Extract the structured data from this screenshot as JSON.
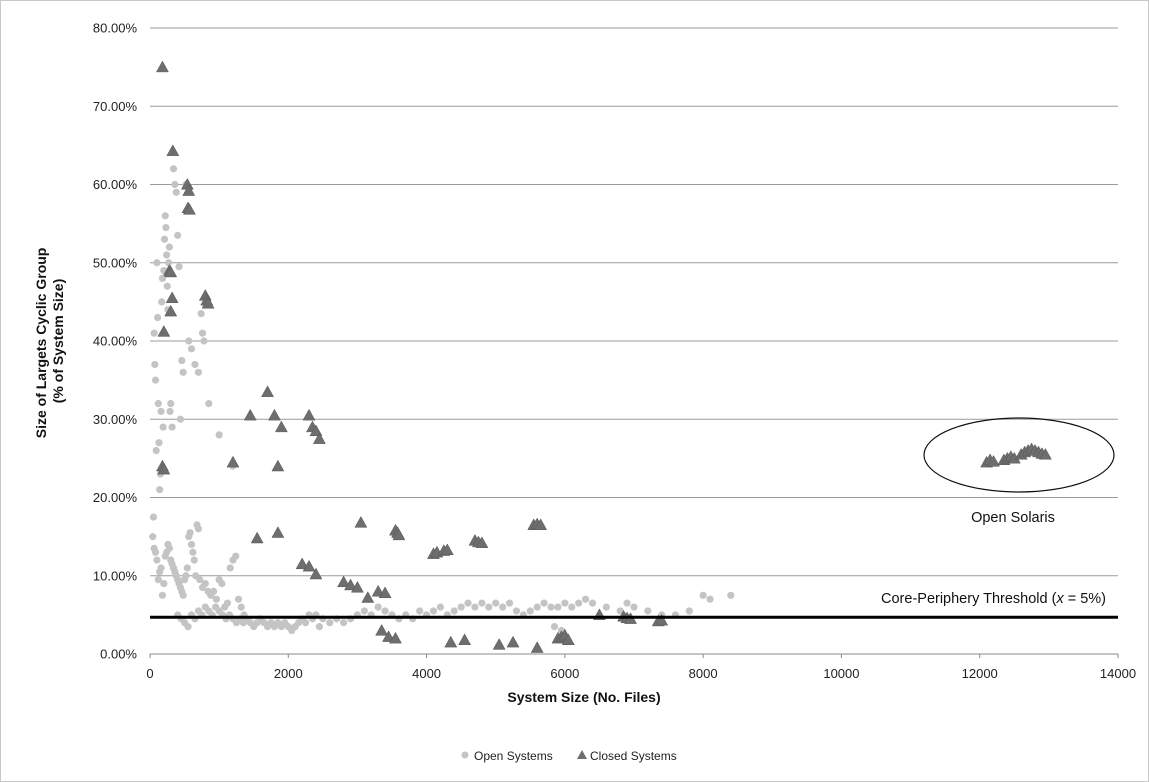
{
  "chart_data": {
    "type": "scatter",
    "xlabel": "System Size (No. Files)",
    "ylabel_lines": [
      "Size of Largets Cyclic Group",
      "(% of System Size)"
    ],
    "xlim": [
      0,
      14000
    ],
    "ylim": [
      0,
      0.8
    ],
    "x_ticks": [
      "0",
      "2000",
      "4000",
      "6000",
      "8000",
      "10000",
      "12000",
      "14000"
    ],
    "y_ticks": [
      "0.00%",
      "10.00%",
      "20.00%",
      "30.00%",
      "40.00%",
      "50.00%",
      "60.00%",
      "70.00%",
      "80.00%"
    ],
    "grid": "horizontal",
    "legend_position": "bottom",
    "threshold": {
      "y": 0.047,
      "label_prefix": "Core-Periphery Threshold (",
      "label_var": "x",
      "label_suffix": " = 5%)"
    },
    "highlight": {
      "label": "Open Solaris"
    },
    "colors": {
      "open": "#c4c4c4",
      "closed": "#6e6e6e",
      "grid": "#9c9c9c",
      "threshold": "#000000"
    },
    "series": [
      {
        "name": "Open Systems",
        "marker": "circle",
        "points": [
          [
            50,
            0.175
          ],
          [
            60,
            0.41
          ],
          [
            70,
            0.37
          ],
          [
            80,
            0.35
          ],
          [
            90,
            0.26
          ],
          [
            100,
            0.5
          ],
          [
            110,
            0.43
          ],
          [
            120,
            0.32
          ],
          [
            130,
            0.27
          ],
          [
            140,
            0.21
          ],
          [
            150,
            0.23
          ],
          [
            160,
            0.31
          ],
          [
            170,
            0.45
          ],
          [
            180,
            0.48
          ],
          [
            190,
            0.29
          ],
          [
            200,
            0.49
          ],
          [
            210,
            0.53
          ],
          [
            220,
            0.56
          ],
          [
            230,
            0.545
          ],
          [
            240,
            0.51
          ],
          [
            250,
            0.47
          ],
          [
            260,
            0.44
          ],
          [
            270,
            0.5
          ],
          [
            280,
            0.52
          ],
          [
            290,
            0.31
          ],
          [
            300,
            0.32
          ],
          [
            320,
            0.29
          ],
          [
            340,
            0.62
          ],
          [
            360,
            0.6
          ],
          [
            380,
            0.59
          ],
          [
            400,
            0.535
          ],
          [
            420,
            0.495
          ],
          [
            440,
            0.3
          ],
          [
            460,
            0.375
          ],
          [
            480,
            0.36
          ],
          [
            520,
            0.6
          ],
          [
            560,
            0.4
          ],
          [
            600,
            0.39
          ],
          [
            650,
            0.37
          ],
          [
            700,
            0.36
          ],
          [
            740,
            0.435
          ],
          [
            760,
            0.41
          ],
          [
            780,
            0.4
          ],
          [
            850,
            0.32
          ],
          [
            1000,
            0.28
          ],
          [
            1200,
            0.24
          ],
          [
            40,
            0.15
          ],
          [
            60,
            0.135
          ],
          [
            80,
            0.13
          ],
          [
            100,
            0.12
          ],
          [
            120,
            0.095
          ],
          [
            140,
            0.105
          ],
          [
            160,
            0.11
          ],
          [
            180,
            0.075
          ],
          [
            200,
            0.09
          ],
          [
            220,
            0.125
          ],
          [
            240,
            0.13
          ],
          [
            260,
            0.14
          ],
          [
            280,
            0.135
          ],
          [
            300,
            0.12
          ],
          [
            320,
            0.115
          ],
          [
            340,
            0.11
          ],
          [
            360,
            0.105
          ],
          [
            380,
            0.1
          ],
          [
            400,
            0.095
          ],
          [
            420,
            0.09
          ],
          [
            440,
            0.085
          ],
          [
            460,
            0.08
          ],
          [
            480,
            0.075
          ],
          [
            500,
            0.095
          ],
          [
            520,
            0.1
          ],
          [
            540,
            0.11
          ],
          [
            560,
            0.15
          ],
          [
            580,
            0.155
          ],
          [
            600,
            0.14
          ],
          [
            620,
            0.13
          ],
          [
            640,
            0.12
          ],
          [
            660,
            0.1
          ],
          [
            680,
            0.165
          ],
          [
            700,
            0.16
          ],
          [
            720,
            0.095
          ],
          [
            760,
            0.085
          ],
          [
            800,
            0.09
          ],
          [
            840,
            0.08
          ],
          [
            880,
            0.075
          ],
          [
            920,
            0.08
          ],
          [
            960,
            0.07
          ],
          [
            1000,
            0.095
          ],
          [
            1040,
            0.09
          ],
          [
            1080,
            0.06
          ],
          [
            1120,
            0.065
          ],
          [
            1160,
            0.11
          ],
          [
            1200,
            0.12
          ],
          [
            1240,
            0.125
          ],
          [
            1280,
            0.07
          ],
          [
            1320,
            0.06
          ],
          [
            1360,
            0.05
          ],
          [
            400,
            0.05
          ],
          [
            450,
            0.045
          ],
          [
            500,
            0.04
          ],
          [
            550,
            0.035
          ],
          [
            600,
            0.05
          ],
          [
            650,
            0.045
          ],
          [
            700,
            0.055
          ],
          [
            750,
            0.05
          ],
          [
            800,
            0.06
          ],
          [
            850,
            0.055
          ],
          [
            900,
            0.05
          ],
          [
            950,
            0.06
          ],
          [
            1000,
            0.055
          ],
          [
            1050,
            0.05
          ],
          [
            1100,
            0.045
          ],
          [
            1150,
            0.05
          ],
          [
            1200,
            0.045
          ],
          [
            1250,
            0.04
          ],
          [
            1300,
            0.045
          ],
          [
            1350,
            0.04
          ],
          [
            1400,
            0.045
          ],
          [
            1450,
            0.04
          ],
          [
            1500,
            0.035
          ],
          [
            1550,
            0.04
          ],
          [
            1600,
            0.045
          ],
          [
            1650,
            0.04
          ],
          [
            1700,
            0.035
          ],
          [
            1750,
            0.04
          ],
          [
            1800,
            0.035
          ],
          [
            1850,
            0.04
          ],
          [
            1900,
            0.035
          ],
          [
            1950,
            0.04
          ],
          [
            2000,
            0.035
          ],
          [
            2050,
            0.03
          ],
          [
            2100,
            0.035
          ],
          [
            2150,
            0.04
          ],
          [
            2200,
            0.045
          ],
          [
            2250,
            0.04
          ],
          [
            2300,
            0.05
          ],
          [
            2350,
            0.045
          ],
          [
            2400,
            0.05
          ],
          [
            2450,
            0.035
          ],
          [
            2500,
            0.045
          ],
          [
            2600,
            0.04
          ],
          [
            2700,
            0.045
          ],
          [
            2800,
            0.04
          ],
          [
            2900,
            0.045
          ],
          [
            3000,
            0.05
          ],
          [
            3100,
            0.055
          ],
          [
            3200,
            0.05
          ],
          [
            3300,
            0.06
          ],
          [
            3400,
            0.055
          ],
          [
            3500,
            0.05
          ],
          [
            3600,
            0.045
          ],
          [
            3700,
            0.05
          ],
          [
            3800,
            0.045
          ],
          [
            3900,
            0.055
          ],
          [
            4000,
            0.05
          ],
          [
            4100,
            0.055
          ],
          [
            4200,
            0.06
          ],
          [
            4300,
            0.05
          ],
          [
            4400,
            0.055
          ],
          [
            4500,
            0.06
          ],
          [
            4600,
            0.065
          ],
          [
            4700,
            0.06
          ],
          [
            4800,
            0.065
          ],
          [
            4900,
            0.06
          ],
          [
            5000,
            0.065
          ],
          [
            5100,
            0.06
          ],
          [
            5200,
            0.065
          ],
          [
            5300,
            0.055
          ],
          [
            5400,
            0.05
          ],
          [
            5500,
            0.055
          ],
          [
            5600,
            0.06
          ],
          [
            5700,
            0.065
          ],
          [
            5800,
            0.06
          ],
          [
            5850,
            0.035
          ],
          [
            5900,
            0.06
          ],
          [
            5950,
            0.03
          ],
          [
            6000,
            0.065
          ],
          [
            6100,
            0.06
          ],
          [
            6200,
            0.065
          ],
          [
            6300,
            0.07
          ],
          [
            6400,
            0.065
          ],
          [
            6600,
            0.06
          ],
          [
            6800,
            0.055
          ],
          [
            6900,
            0.065
          ],
          [
            7000,
            0.06
          ],
          [
            7200,
            0.055
          ],
          [
            7400,
            0.05
          ],
          [
            7600,
            0.05
          ],
          [
            7800,
            0.055
          ],
          [
            8000,
            0.075
          ],
          [
            8100,
            0.07
          ],
          [
            8400,
            0.075
          ]
        ]
      },
      {
        "name": "Closed Systems",
        "marker": "triangle",
        "points": [
          [
            180,
            0.75
          ],
          [
            330,
            0.643
          ],
          [
            540,
            0.6
          ],
          [
            560,
            0.592
          ],
          [
            550,
            0.57
          ],
          [
            570,
            0.568
          ],
          [
            280,
            0.49
          ],
          [
            300,
            0.488
          ],
          [
            320,
            0.455
          ],
          [
            300,
            0.438
          ],
          [
            800,
            0.458
          ],
          [
            820,
            0.452
          ],
          [
            840,
            0.448
          ],
          [
            200,
            0.412
          ],
          [
            180,
            0.24
          ],
          [
            200,
            0.236
          ],
          [
            1200,
            0.245
          ],
          [
            1450,
            0.305
          ],
          [
            1700,
            0.335
          ],
          [
            1800,
            0.305
          ],
          [
            1850,
            0.24
          ],
          [
            1900,
            0.29
          ],
          [
            2300,
            0.305
          ],
          [
            2350,
            0.29
          ],
          [
            2400,
            0.285
          ],
          [
            2450,
            0.275
          ],
          [
            1550,
            0.148
          ],
          [
            1850,
            0.155
          ],
          [
            2200,
            0.115
          ],
          [
            2300,
            0.112
          ],
          [
            2400,
            0.102
          ],
          [
            2800,
            0.092
          ],
          [
            2900,
            0.088
          ],
          [
            3000,
            0.085
          ],
          [
            3050,
            0.168
          ],
          [
            3150,
            0.072
          ],
          [
            3300,
            0.08
          ],
          [
            3400,
            0.078
          ],
          [
            3550,
            0.158
          ],
          [
            3580,
            0.155
          ],
          [
            3600,
            0.152
          ],
          [
            4100,
            0.128
          ],
          [
            4150,
            0.13
          ],
          [
            4250,
            0.132
          ],
          [
            4300,
            0.133
          ],
          [
            4700,
            0.145
          ],
          [
            4750,
            0.143
          ],
          [
            4800,
            0.142
          ],
          [
            5550,
            0.165
          ],
          [
            5600,
            0.166
          ],
          [
            5650,
            0.165
          ],
          [
            3350,
            0.03
          ],
          [
            3450,
            0.022
          ],
          [
            3550,
            0.02
          ],
          [
            4350,
            0.015
          ],
          [
            4550,
            0.018
          ],
          [
            5050,
            0.012
          ],
          [
            5250,
            0.015
          ],
          [
            5600,
            0.008
          ],
          [
            5900,
            0.02
          ],
          [
            5950,
            0.022
          ],
          [
            6000,
            0.024
          ],
          [
            6050,
            0.018
          ],
          [
            6500,
            0.05
          ],
          [
            6850,
            0.048
          ],
          [
            6900,
            0.046
          ],
          [
            6950,
            0.045
          ],
          [
            7350,
            0.042
          ],
          [
            7400,
            0.043
          ],
          [
            12100,
            0.245
          ],
          [
            12150,
            0.248
          ],
          [
            12200,
            0.246
          ],
          [
            12350,
            0.248
          ],
          [
            12400,
            0.25
          ],
          [
            12450,
            0.252
          ],
          [
            12500,
            0.25
          ],
          [
            12600,
            0.255
          ],
          [
            12650,
            0.258
          ],
          [
            12700,
            0.26
          ],
          [
            12750,
            0.262
          ],
          [
            12800,
            0.26
          ],
          [
            12850,
            0.258
          ],
          [
            12900,
            0.256
          ],
          [
            12950,
            0.255
          ]
        ]
      }
    ]
  }
}
